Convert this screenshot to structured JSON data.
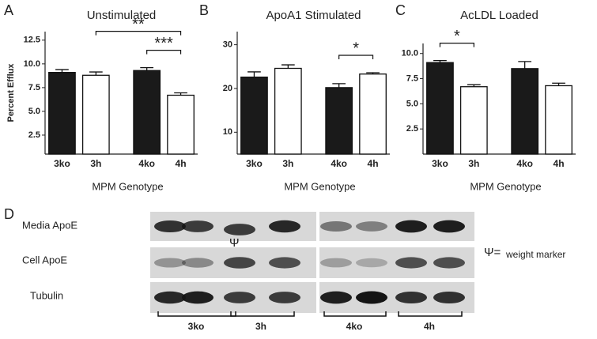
{
  "chart_data": [
    {
      "type": "bar",
      "panel": "A",
      "title": "Unstimulated",
      "y_label": "Percent Efflux",
      "x_label": "MPM Genotype",
      "categories": [
        "3ko",
        "3h",
        "4ko",
        "4h"
      ],
      "values": [
        9.1,
        8.8,
        9.3,
        6.7
      ],
      "errors": [
        0.3,
        0.35,
        0.3,
        0.25
      ],
      "colors": [
        "#1a1a1a",
        "#ffffff",
        "#1a1a1a",
        "#ffffff"
      ],
      "ylim": [
        0.5,
        13.4
      ],
      "yticks": [
        2.5,
        {
          "value": 5,
          "label": "5.0"
        },
        7.5,
        {
          "value": 10,
          "label": "10.0"
        },
        12.5
      ],
      "annotations": [
        {
          "text": "***",
          "from": "4ko",
          "to": "4h"
        },
        {
          "text": "**",
          "from": "3h",
          "to": "4h"
        }
      ]
    },
    {
      "type": "bar",
      "panel": "B",
      "title": "ApoA1 Stimulated",
      "x_label": "MPM Genotype",
      "categories": [
        "3ko",
        "3h",
        "4ko",
        "4h"
      ],
      "values": [
        22.6,
        24.6,
        20.2,
        23.3
      ],
      "errors": [
        1.2,
        0.8,
        0.9,
        0.3
      ],
      "colors": [
        "#1a1a1a",
        "#ffffff",
        "#1a1a1a",
        "#ffffff"
      ],
      "ylim": [
        5,
        33
      ],
      "yticks": [
        10,
        20,
        30
      ],
      "annotations": [
        {
          "text": "*",
          "from": "4ko",
          "to": "4h"
        }
      ]
    },
    {
      "type": "bar",
      "panel": "C",
      "title": "AcLDL Loaded",
      "x_label": "MPM Genotype",
      "categories": [
        "3ko",
        "3h",
        "4ko",
        "4h"
      ],
      "values": [
        9.1,
        6.7,
        8.5,
        6.8
      ],
      "errors": [
        0.2,
        0.2,
        0.7,
        0.25
      ],
      "colors": [
        "#1a1a1a",
        "#ffffff",
        "#1a1a1a",
        "#ffffff"
      ],
      "ylim": [
        0,
        11
      ],
      "yticks": [
        2.5,
        {
          "value": 5,
          "label": "5.0"
        },
        7.5,
        {
          "value": 10,
          "label": "10.0"
        }
      ],
      "annotations": [
        {
          "text": "*",
          "from": "3ko",
          "to": "3h"
        }
      ]
    }
  ],
  "blot": {
    "panel": "D",
    "rows": [
      "Media ApoE",
      "Cell ApoE",
      "Tubulin"
    ],
    "marker": "Ψ",
    "legend_symbol": "Ψ=",
    "legend_text": "weight marker",
    "groups": [
      "3ko",
      "3h",
      "4ko",
      "4h"
    ]
  }
}
